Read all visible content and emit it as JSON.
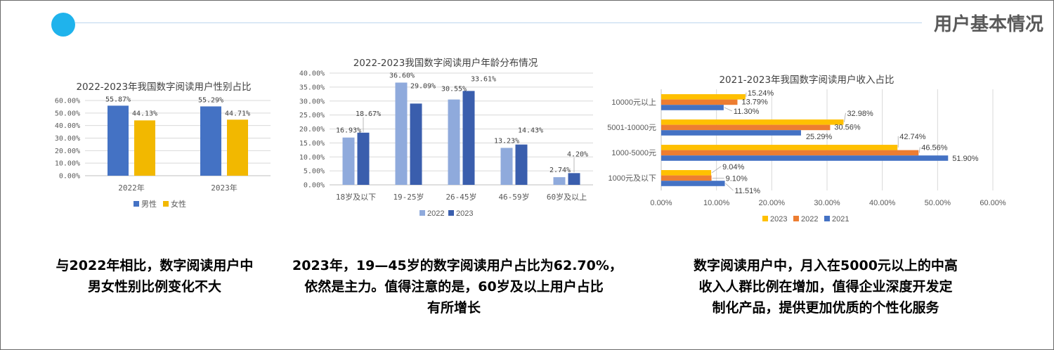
{
  "header": {
    "title": "用户基本情况",
    "accent_color": "#1FB3EC"
  },
  "chart_data": [
    {
      "type": "bar",
      "orientation": "vertical",
      "title": "2022-2023年我国数字阅读用户性别占比",
      "categories": [
        "2022年",
        "2023年"
      ],
      "series": [
        {
          "name": "男性",
          "color": "#4472C4",
          "values": [
            55.87,
            55.29
          ],
          "labels": [
            "55.87%",
            "55.29%"
          ]
        },
        {
          "name": "女性",
          "color": "#F2B800",
          "values": [
            44.13,
            44.71
          ],
          "labels": [
            "44.13%",
            "44.71%"
          ]
        }
      ],
      "xlabel": "",
      "ylabel": "",
      "ylim": [
        0,
        60
      ],
      "y_ticks": [
        0,
        10,
        20,
        30,
        40,
        50,
        60
      ],
      "y_tick_labels": [
        "0.00%",
        "10.00%",
        "20.00%",
        "30.00%",
        "40.00%",
        "50.00%",
        "60.00%"
      ],
      "grid": true,
      "legend": "bottom"
    },
    {
      "type": "bar",
      "orientation": "vertical",
      "title": "2022-2023我国数字阅读用户年龄分布情况",
      "categories": [
        "18岁及以下",
        "19-25岁",
        "26-45岁",
        "46-59岁",
        "60岁及以上"
      ],
      "series": [
        {
          "name": "2022",
          "color": "#8FAADC",
          "values": [
            16.93,
            36.6,
            30.55,
            13.23,
            2.74
          ],
          "labels": [
            "16.93%",
            "36.60%",
            "30.55%",
            "13.23%",
            "2.74%"
          ]
        },
        {
          "name": "2023",
          "color": "#3A5EAD",
          "values": [
            18.67,
            29.09,
            33.61,
            14.43,
            4.2
          ],
          "labels": [
            "18.67%",
            "29.09%",
            "33.61%",
            "14.43%",
            "4.20%"
          ]
        }
      ],
      "xlabel": "",
      "ylabel": "",
      "ylim": [
        0,
        40
      ],
      "y_ticks": [
        0,
        5,
        10,
        15,
        20,
        25,
        30,
        35,
        40
      ],
      "y_tick_labels": [
        "0.00%",
        "5.00%",
        "10.00%",
        "15.00%",
        "20.00%",
        "25.00%",
        "30.00%",
        "35.00%",
        "40.00%"
      ],
      "grid": true,
      "legend": "bottom"
    },
    {
      "type": "bar",
      "orientation": "horizontal",
      "title": "2021-2023年我国数字阅读用户收入占比",
      "categories": [
        "10000元以上",
        "5001-10000元",
        "1000-5000元",
        "1000元及以下"
      ],
      "series": [
        {
          "name": "2023",
          "color": "#FFC000",
          "values": [
            15.24,
            32.98,
            42.74,
            9.04
          ],
          "labels": [
            "15.24%",
            "32.98%",
            "42.74%",
            "9.04%"
          ]
        },
        {
          "name": "2022",
          "color": "#ED7D31",
          "values": [
            13.79,
            30.56,
            46.56,
            9.1
          ],
          "labels": [
            "13.79%",
            "30.56%",
            "46.56%",
            "9.10%"
          ]
        },
        {
          "name": "2021",
          "color": "#4472C4",
          "values": [
            11.3,
            25.29,
            51.9,
            11.51
          ],
          "labels": [
            "11.30%",
            "25.29%",
            "51.90%",
            "11.51%"
          ]
        }
      ],
      "xlabel": "",
      "ylabel": "",
      "xlim": [
        0,
        60
      ],
      "x_ticks": [
        0,
        10,
        20,
        30,
        40,
        50,
        60
      ],
      "x_tick_labels": [
        "0.00%",
        "10.00%",
        "20.00%",
        "30.00%",
        "40.00%",
        "50.00%",
        "60.00%"
      ],
      "grid": true,
      "legend": "bottom"
    }
  ],
  "captions": {
    "gender": {
      "lines": [
        "与2022年相比，数字阅读用户中",
        "男女性别比例变化不大"
      ]
    },
    "age": {
      "lines": [
        "2023年，19—45岁的数字阅读用户占比为62.70%，",
        "依然是主力。值得注意的是，60岁及以上用户占比",
        "有所增长"
      ]
    },
    "income": {
      "lines": [
        "数字阅读用户中，月入在5000元以上的中高",
        "收入人群比例在增加，值得企业深度开发定",
        "制化产品，提供更加优质的个性化服务"
      ]
    }
  }
}
